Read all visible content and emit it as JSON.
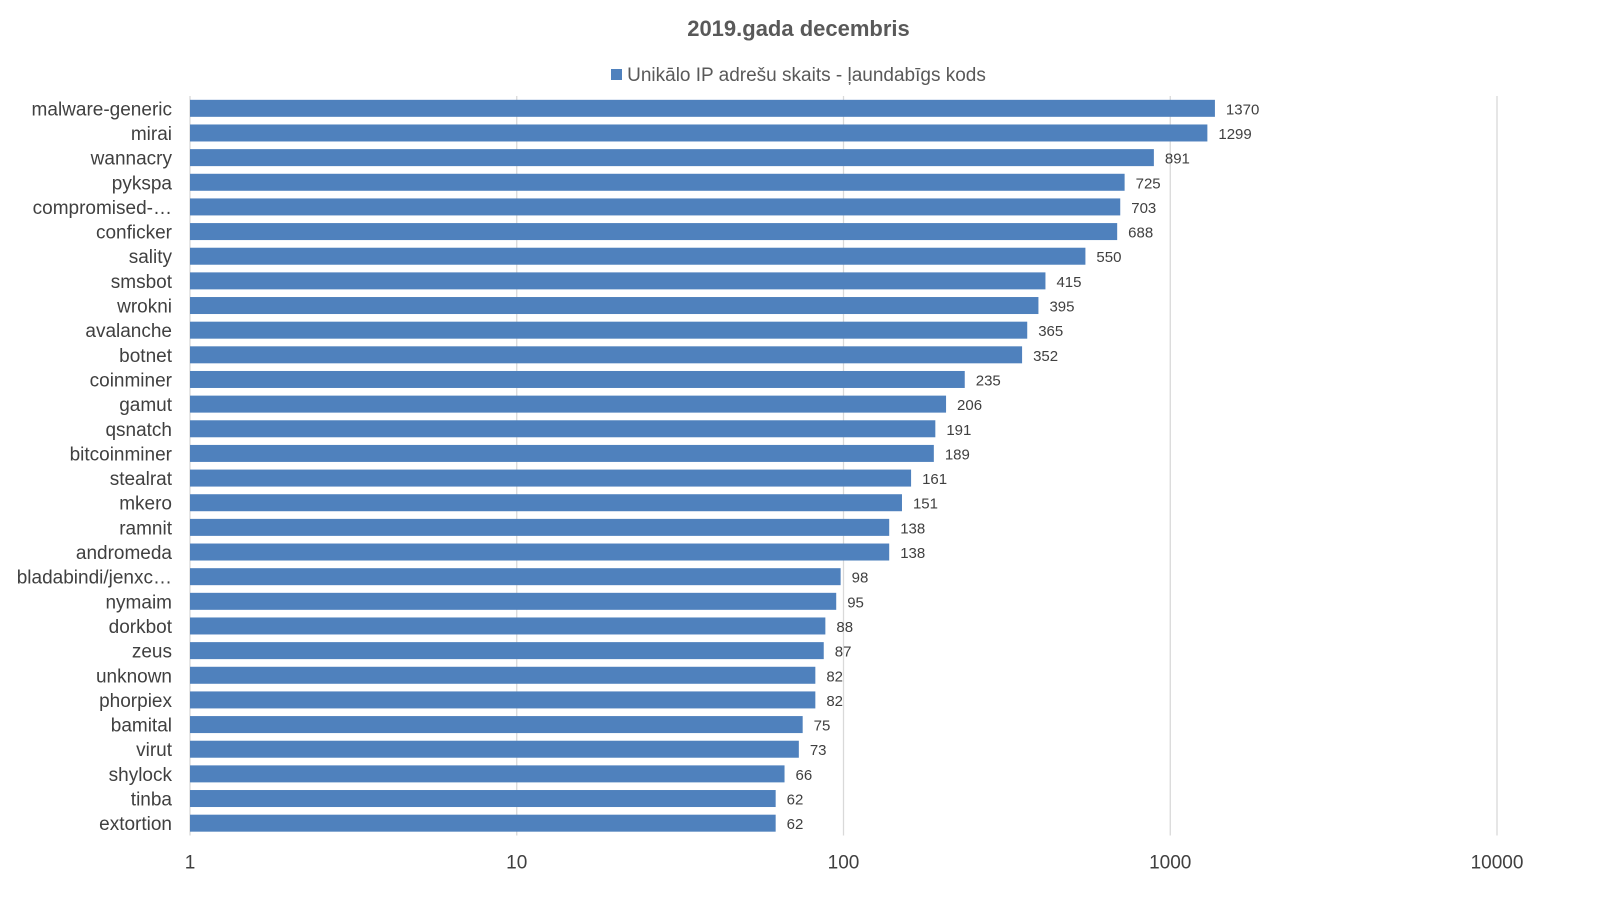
{
  "chart_data": {
    "type": "bar",
    "orientation": "horizontal",
    "title": "2019.gada decembris",
    "xscale": "log",
    "xlim": [
      1,
      10000
    ],
    "x_ticks": [
      "1",
      "10",
      "100",
      "1000",
      "10000"
    ],
    "grid": true,
    "legend_position": "top",
    "bar_color": "#4f81bd",
    "categories": [
      "malware-generic",
      "mirai",
      "wannacry",
      "pykspa",
      "compromised-…",
      "conficker",
      "sality",
      "smsbot",
      "wrokni",
      "avalanche",
      "botnet",
      "coinminer",
      "gamut",
      "qsnatch",
      "bitcoinminer",
      "stealrat",
      "mkero",
      "ramnit",
      "andromeda",
      "bladabindi/jenxc…",
      "nymaim",
      "dorkbot",
      "zeus",
      "unknown",
      "phorpiex",
      "bamital",
      "virut",
      "shylock",
      "tinba",
      "extortion"
    ],
    "series": [
      {
        "name": "Unikālo IP adrešu skaits - ļaundabīgs kods",
        "values": [
          1370,
          1299,
          891,
          725,
          703,
          688,
          550,
          415,
          395,
          365,
          352,
          235,
          206,
          191,
          189,
          161,
          151,
          138,
          138,
          98,
          95,
          88,
          87,
          82,
          82,
          75,
          73,
          66,
          62,
          62
        ]
      }
    ]
  }
}
